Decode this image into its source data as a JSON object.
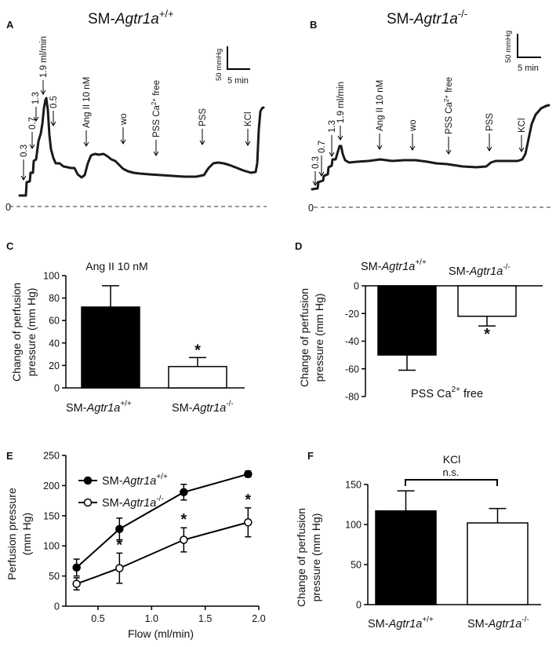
{
  "panel_letters": {
    "a": "A",
    "b": "B",
    "c": "C",
    "d": "D",
    "e": "E",
    "f": "F"
  },
  "genotypes": {
    "wt_prefix": "SM-",
    "wt_gene": "Agtr1a",
    "wt_sup": "+/+",
    "ko_prefix": "SM-",
    "ko_gene": "Agtr1a",
    "ko_sup": "-/-"
  },
  "chart_data": [
    {
      "panel": "A",
      "type": "line",
      "title": "SM-Agtr1a+/+",
      "scale_bar": {
        "pressure": "50 mmHg",
        "time": "5 min"
      },
      "baseline_label": "0",
      "events": [
        "0.3",
        "0.7",
        "1.3",
        "1.9 ml/min",
        "0.5",
        "Ang II 10 nM",
        "wo",
        "PSS Ca2+ free",
        "PSS",
        "KCl"
      ],
      "ca_event_parts": {
        "prefix": "PSS Ca",
        "sup": "2+",
        "suffix": " free"
      }
    },
    {
      "panel": "B",
      "type": "line",
      "title": "SM-Agtr1a-/-",
      "scale_bar": {
        "pressure": "50 mmHg",
        "time": "5 min"
      },
      "baseline_label": "0",
      "events": [
        "0.3",
        "0.7",
        "1.3",
        "1.9 ml/min",
        "Ang II 10 nM",
        "wo",
        "PSS Ca2+ free",
        "PSS",
        "KCl"
      ]
    },
    {
      "panel": "C",
      "type": "bar",
      "title": "Ang II 10 nM",
      "categories": [
        "SM-Agtr1a+/+",
        "SM-Agtr1a-/-"
      ],
      "values": [
        72,
        19
      ],
      "errors": [
        19,
        8
      ],
      "fills": [
        "#000000",
        "#ffffff"
      ],
      "significance": [
        "",
        "*"
      ],
      "ylabel": "Change of perfusion pressure (mm Hg)",
      "ylabel_lines": [
        "Change of perfusion",
        "pressure (mm Hg)"
      ],
      "ylim": [
        0,
        100
      ],
      "yticks": [
        0,
        20,
        40,
        60,
        80,
        100
      ]
    },
    {
      "panel": "D",
      "type": "bar",
      "title": "PSS Ca2+ free",
      "title_parts": {
        "prefix": "PSS Ca",
        "sup": "2+",
        "suffix": " free"
      },
      "categories": [
        "SM-Agtr1a+/+",
        "SM-Agtr1a-/-"
      ],
      "values": [
        -50,
        -22
      ],
      "errors": [
        11,
        7
      ],
      "fills": [
        "#000000",
        "#ffffff"
      ],
      "significance": [
        "",
        "*"
      ],
      "ylabel": "Change of perfusion pressure (mm Hg)",
      "ylabel_lines": [
        "Change of perfusion",
        "pressure (mm Hg)"
      ],
      "ylim": [
        -80,
        0
      ],
      "yticks": [
        0,
        -20,
        -40,
        -60,
        -80
      ]
    },
    {
      "panel": "E",
      "type": "line",
      "xlabel": "Flow (ml/min)",
      "ylabel": "Perfusion pressure (mm Hg)",
      "ylabel_lines": [
        "Perfusion pressure",
        "(mm Hg)"
      ],
      "xlim": [
        0.2,
        2.0
      ],
      "ylim": [
        0,
        250
      ],
      "xticks": [
        "0.5",
        "1.0",
        "1.5",
        "2.0"
      ],
      "yticks": [
        0,
        50,
        100,
        150,
        200,
        250
      ],
      "x": [
        0.3,
        0.7,
        1.3,
        1.9
      ],
      "series": [
        {
          "name": "SM-Agtr1a+/+",
          "marker": "filled",
          "values": [
            64,
            128,
            189,
            219
          ],
          "errors": [
            14,
            18,
            13,
            5
          ],
          "significance": [
            "",
            "",
            "",
            ""
          ]
        },
        {
          "name": "SM-Agtr1a-/-",
          "marker": "open",
          "values": [
            37,
            63,
            110,
            139
          ],
          "errors": [
            10,
            25,
            20,
            24
          ],
          "significance": [
            "",
            "*",
            "*",
            "*"
          ]
        }
      ],
      "legend": "top-left"
    },
    {
      "panel": "F",
      "type": "bar",
      "title": "KCl",
      "categories": [
        "SM-Agtr1a+/+",
        "SM-Agtr1a-/-"
      ],
      "values": [
        117,
        102
      ],
      "errors": [
        25,
        18
      ],
      "fills": [
        "#000000",
        "#ffffff"
      ],
      "comparison_label": "n.s.",
      "ylabel": "Change of perfusion pressure (mm Hg)",
      "ylabel_lines": [
        "Change of perfusion",
        "pressure (mm Hg)"
      ],
      "ylim": [
        0,
        150
      ],
      "yticks": [
        0,
        50,
        100,
        150
      ]
    }
  ]
}
